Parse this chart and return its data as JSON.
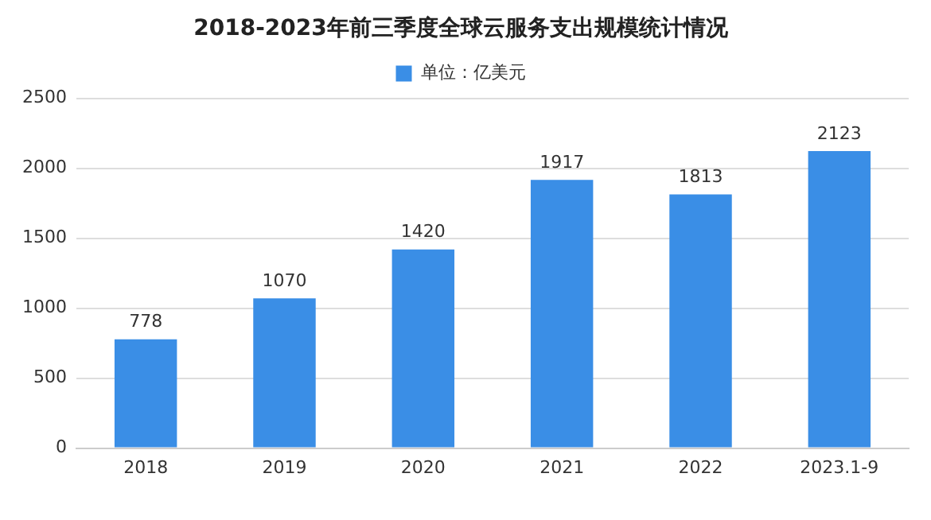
{
  "chart_data": {
    "type": "bar",
    "title": "2018-2023年前三季度全球云服务支出规模统计情况",
    "categories": [
      "2018",
      "2019",
      "2020",
      "2021",
      "2022",
      "2023.1-9"
    ],
    "series": [
      {
        "name": "单位：亿美元",
        "color": "#3a8ee6",
        "values": [
          778,
          1070,
          1420,
          1917,
          1813,
          2123
        ]
      }
    ],
    "ylim": [
      0,
      2500
    ],
    "yticks": [
      0,
      500,
      1000,
      1500,
      2000,
      2500
    ],
    "grid": "y",
    "legend": "top",
    "data_labels": true
  }
}
